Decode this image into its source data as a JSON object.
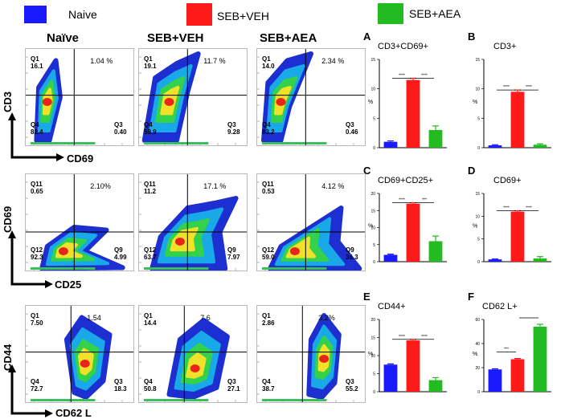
{
  "legend": [
    {
      "label": "Naive",
      "color": "#1a1aff"
    },
    {
      "label": "SEB+VEH",
      "color": "#ff1a1a"
    },
    {
      "label": "SEB+AEA",
      "color": "#22bb22"
    }
  ],
  "flow": {
    "columns": [
      "Naïve",
      "SEB+VEH",
      "SEB+AEA"
    ],
    "rows": [
      {
        "y_axis": "CD3",
        "x_axis": "CD69",
        "plots": [
          {
            "tl_name": "Q1",
            "tl": "16.1",
            "tr": "1.04 %",
            "bl_name": "Q4",
            "bl": "82.4",
            "br_name": "Q3",
            "br": "0.40"
          },
          {
            "tl_name": "Q1",
            "tl": "19.1",
            "tr": "11.7 %",
            "bl_name": "Q4",
            "bl": "59.9",
            "br_name": "Q3",
            "br": "9.28"
          },
          {
            "tl_name": "Q1",
            "tl": "14.0",
            "tr": "2.34 %",
            "bl_name": "Q4",
            "bl": "83.2",
            "br_name": "Q3",
            "br": "0.46"
          }
        ]
      },
      {
        "y_axis": "CD69",
        "x_axis": "CD25",
        "plots": [
          {
            "tl_name": "Q11",
            "tl": "0.65",
            "tr": "2.10%",
            "bl_name": "Q12",
            "bl": "92.3",
            "br_name": "Q9",
            "br": "4.99"
          },
          {
            "tl_name": "Q11",
            "tl": "11.2",
            "tr": "17.1 %",
            "bl_name": "Q12",
            "bl": "63.7",
            "br_name": "Q9",
            "br": "7.97"
          },
          {
            "tl_name": "Q11",
            "tl": "0.53",
            "tr": "4.12 %",
            "bl_name": "Q12",
            "bl": "59.0",
            "br_name": "Q9",
            "br": "36.3"
          }
        ]
      },
      {
        "y_axis": "CD44",
        "x_axis": "CD62 L",
        "plots": [
          {
            "tl_name": "Q1",
            "tl": "7.50",
            "tr": "1.54",
            "bl_name": "Q4",
            "bl": "72.7",
            "br_name": "Q3",
            "br": "18.3"
          },
          {
            "tl_name": "Q1",
            "tl": "14.4",
            "tr": "7.6",
            "bl_name": "Q4",
            "bl": "50.8",
            "br_name": "Q3",
            "br": "27.1"
          },
          {
            "tl_name": "Q1",
            "tl": "2.86",
            "tr": "3.2%",
            "bl_name": "Q4",
            "bl": "38.7",
            "br_name": "Q3",
            "br": "55.2"
          }
        ]
      }
    ]
  },
  "chart_data": [
    {
      "panel": "A",
      "type": "bar",
      "title": "CD3+CD69+",
      "categories": [
        "Naive",
        "SEB+VEH",
        "SEB+AEA"
      ],
      "values": [
        1.0,
        11.5,
        3.0
      ],
      "errors": [
        0.15,
        0.3,
        0.7
      ],
      "ylabel": "%",
      "ylim": [
        0,
        15
      ],
      "sig": [
        {
          "from": 0,
          "to": 1,
          "label": "****"
        },
        {
          "from": 1,
          "to": 2,
          "label": "****"
        }
      ]
    },
    {
      "panel": "B",
      "type": "bar",
      "title": "CD3+",
      "categories": [
        "Naive",
        "SEB+VEH",
        "SEB+AEA"
      ],
      "values": [
        0.4,
        9.5,
        0.5
      ],
      "errors": [
        0.1,
        0.3,
        0.15
      ],
      "ylabel": "%",
      "ylim": [
        0,
        15
      ],
      "sig": [
        {
          "from": 0,
          "to": 1,
          "label": "****"
        },
        {
          "from": 1,
          "to": 2,
          "label": "****"
        }
      ]
    },
    {
      "panel": "C",
      "type": "bar",
      "title": "CD69+CD25+",
      "categories": [
        "Naive",
        "SEB+VEH",
        "SEB+AEA"
      ],
      "values": [
        2.0,
        17.0,
        6.0
      ],
      "errors": [
        0.2,
        0.3,
        1.5
      ],
      "ylabel": "%",
      "ylim": [
        0,
        20
      ],
      "sig": [
        {
          "from": 0,
          "to": 1,
          "label": "****"
        },
        {
          "from": 1,
          "to": 2,
          "label": "***"
        }
      ]
    },
    {
      "panel": "D",
      "type": "bar",
      "title": "CD69+",
      "categories": [
        "Naive",
        "SEB+VEH",
        "SEB+AEA"
      ],
      "values": [
        0.5,
        11.0,
        0.7
      ],
      "errors": [
        0.1,
        0.2,
        0.4
      ],
      "ylabel": "%",
      "ylim": [
        0,
        15
      ],
      "sig": [
        {
          "from": 0,
          "to": 1,
          "label": "****"
        },
        {
          "from": 1,
          "to": 2,
          "label": "****"
        }
      ]
    },
    {
      "panel": "E",
      "type": "bar",
      "title": "CD44+",
      "categories": [
        "Naive",
        "SEB+VEH",
        "SEB+AEA"
      ],
      "values": [
        7.5,
        14.2,
        3.2
      ],
      "errors": [
        0.2,
        0.3,
        0.7
      ],
      "ylabel": "%",
      "ylim": [
        0,
        20
      ],
      "sig": [
        {
          "from": 0,
          "to": 1,
          "label": "****"
        },
        {
          "from": 1,
          "to": 2,
          "label": "****"
        }
      ]
    },
    {
      "panel": "F",
      "type": "bar",
      "title": "CD62 L+",
      "categories": [
        "Naive",
        "SEB+VEH",
        "SEB+AEA"
      ],
      "values": [
        18.5,
        27.0,
        54.0
      ],
      "errors": [
        0.5,
        0.6,
        2.0
      ],
      "ylabel": "%",
      "ylim": [
        0,
        60
      ],
      "sig": [
        {
          "from": 0,
          "to": 1,
          "label": "***"
        },
        {
          "from": 1,
          "to": 2,
          "label": "****"
        }
      ]
    }
  ]
}
